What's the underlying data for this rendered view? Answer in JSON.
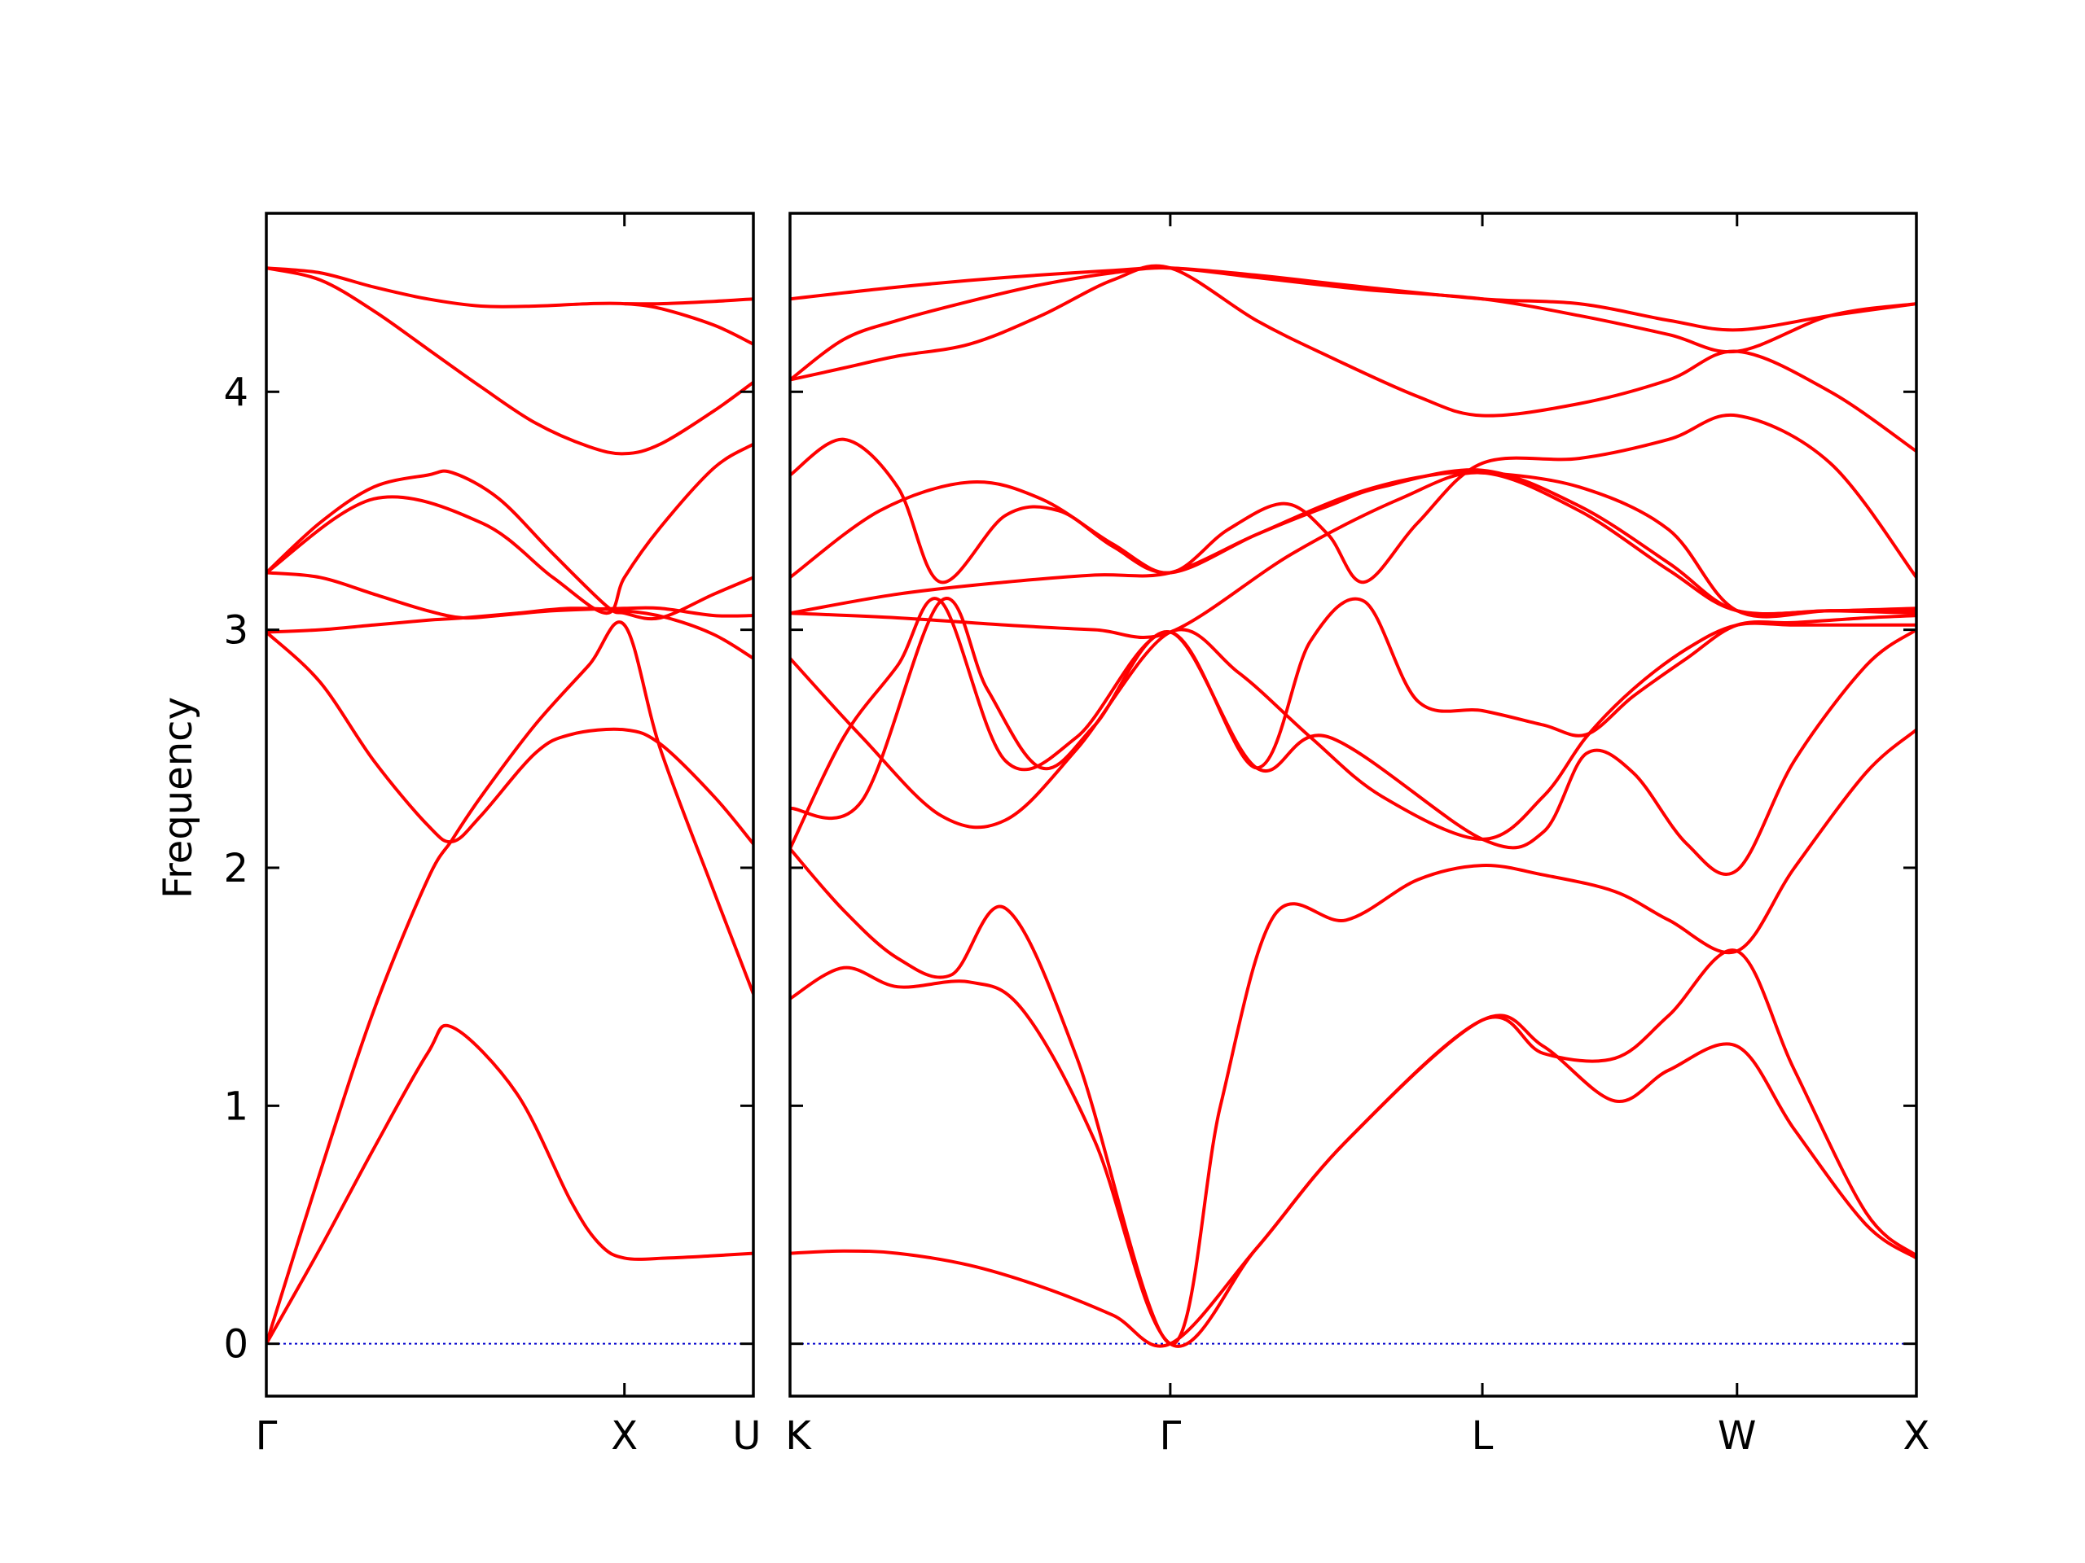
{
  "chart_data": {
    "type": "line",
    "title": "",
    "ylabel": "Frequency",
    "ylim": [
      -0.22,
      4.75
    ],
    "yticks": [
      0,
      1,
      2,
      3,
      4
    ],
    "line_color": "#ff0000",
    "zero_line_color": "#0000cc",
    "grid": false,
    "legend": "none",
    "panels": [
      {
        "name": "Γ-X-U",
        "x_labels": [
          "Γ",
          "X",
          "U"
        ],
        "x_positions": [
          0,
          1,
          1.36
        ],
        "bands": [
          {
            "x": [
              0,
              0.15,
              0.3,
              0.45,
              0.52,
              0.7,
              0.85,
              0.93,
              1.0,
              1.12,
              1.25,
              1.36
            ],
            "y": [
              0,
              0.4,
              0.82,
              1.22,
              1.33,
              1.05,
              0.6,
              0.42,
              0.36,
              0.36,
              0.37,
              0.38
            ]
          },
          {
            "x": [
              0,
              0.15,
              0.3,
              0.45,
              0.52,
              0.6,
              0.75,
              0.9,
              1.0,
              1.1,
              1.25,
              1.36
            ],
            "y": [
              0,
              0.72,
              1.4,
              1.95,
              2.12,
              2.3,
              2.6,
              2.85,
              3.02,
              2.5,
              1.9,
              1.47
            ]
          },
          {
            "x": [
              0,
              0.15,
              0.3,
              0.45,
              0.52,
              0.6,
              0.75,
              0.85,
              1.0,
              1.1,
              1.25,
              1.36
            ],
            "y": [
              2.99,
              2.78,
              2.45,
              2.18,
              2.11,
              2.22,
              2.48,
              2.56,
              2.58,
              2.52,
              2.3,
              2.1
            ]
          },
          {
            "x": [
              0,
              0.15,
              0.3,
              0.45,
              0.55,
              0.7,
              0.85,
              1.0,
              1.12,
              1.25,
              1.36
            ],
            "y": [
              2.99,
              3.0,
              3.02,
              3.04,
              3.05,
              3.07,
              3.09,
              3.08,
              3.05,
              2.98,
              2.88
            ]
          },
          {
            "x": [
              0,
              0.15,
              0.3,
              0.45,
              0.55,
              0.65,
              0.8,
              1.0,
              1.1,
              1.25,
              1.36
            ],
            "y": [
              3.24,
              3.22,
              3.15,
              3.08,
              3.05,
              3.06,
              3.08,
              3.09,
              3.09,
              3.06,
              3.06
            ]
          },
          {
            "x": [
              0,
              0.15,
              0.3,
              0.45,
              0.52,
              0.65,
              0.8,
              0.95,
              1.0,
              1.1,
              1.25,
              1.36
            ],
            "y": [
              3.24,
              3.45,
              3.6,
              3.65,
              3.66,
              3.55,
              3.32,
              3.1,
              3.07,
              3.05,
              3.15,
              3.22
            ]
          },
          {
            "x": [
              0,
              0.3,
              0.6,
              0.8,
              0.95,
              1.0,
              1.1,
              1.25,
              1.36
            ],
            "y": [
              3.24,
              3.55,
              3.45,
              3.22,
              3.07,
              3.22,
              3.43,
              3.68,
              3.78
            ]
          },
          {
            "x": [
              0,
              0.15,
              0.3,
              0.45,
              0.6,
              0.75,
              0.9,
              1.0,
              1.1,
              1.25,
              1.36
            ],
            "y": [
              4.52,
              4.47,
              4.34,
              4.18,
              4.02,
              3.87,
              3.77,
              3.74,
              3.78,
              3.92,
              4.04
            ]
          },
          {
            "x": [
              0,
              0.15,
              0.3,
              0.45,
              0.6,
              0.75,
              0.9,
              1.0,
              1.1,
              1.25,
              1.36
            ],
            "y": [
              4.52,
              4.5,
              4.44,
              4.39,
              4.36,
              4.36,
              4.37,
              4.37,
              4.35,
              4.28,
              4.2
            ]
          },
          {
            "x": [
              1.0,
              1.1,
              1.25,
              1.36
            ],
            "y": [
              4.37,
              4.37,
              4.38,
              4.39
            ]
          }
        ]
      },
      {
        "name": "K-Γ-L-W-X",
        "x_labels": [
          "K",
          "Γ",
          "L",
          "W",
          "X"
        ],
        "x_positions": [
          0,
          1.06,
          1.93,
          2.64,
          3.14
        ],
        "bands": [
          {
            "x": [
              0,
              0.15,
              0.3,
              0.5,
              0.7,
              0.9,
              1.06,
              1.3,
              1.55,
              1.93,
              2.1,
              2.3,
              2.45,
              2.64,
              2.8,
              3.0,
              3.14
            ],
            "y": [
              0.38,
              0.39,
              0.38,
              0.33,
              0.24,
              0.12,
              0,
              0.4,
              0.85,
              1.36,
              1.25,
              1.02,
              1.15,
              1.25,
              0.9,
              0.5,
              0.36
            ]
          },
          {
            "x": [
              0,
              0.15,
              0.3,
              0.5,
              0.65,
              0.85,
              1.06,
              1.3,
              1.55,
              1.93,
              2.1,
              2.3,
              2.45,
              2.64,
              2.8,
              3.0,
              3.14
            ],
            "y": [
              1.45,
              1.58,
              1.5,
              1.52,
              1.4,
              0.85,
              0,
              0.4,
              0.85,
              1.36,
              1.22,
              1.2,
              1.38,
              1.65,
              1.15,
              0.55,
              0.37
            ]
          },
          {
            "x": [
              0,
              0.15,
              0.3,
              0.45,
              0.6,
              0.8,
              1.06,
              1.2,
              1.35,
              1.55,
              1.75,
              1.93,
              2.1,
              2.3,
              2.45,
              2.64,
              2.8,
              3.0,
              3.14
            ],
            "y": [
              2.08,
              1.82,
              1.62,
              1.55,
              1.83,
              1.2,
              0,
              1.0,
              1.8,
              1.78,
              1.95,
              2.01,
              1.97,
              1.9,
              1.78,
              1.65,
              2.0,
              2.4,
              2.58
            ]
          },
          {
            "x": [
              0,
              0.2,
              0.42,
              0.55,
              0.7,
              0.85,
              1.06,
              1.3,
              1.5,
              1.93,
              2.1,
              2.22,
              2.35,
              2.5,
              2.64,
              2.8,
              3.0,
              3.14
            ],
            "y": [
              2.25,
              2.28,
              3.12,
              2.75,
              2.42,
              2.6,
              2.99,
              2.42,
              2.55,
              2.12,
              2.15,
              2.48,
              2.4,
              2.1,
              1.99,
              2.45,
              2.85,
              3.0
            ]
          },
          {
            "x": [
              0,
              0.2,
              0.42,
              0.6,
              0.8,
              1.06,
              1.25,
              1.45,
              1.65,
              1.93,
              2.1,
              2.22,
              2.35,
              2.5,
              2.64,
              2.8,
              3.0,
              3.14
            ],
            "y": [
              2.88,
              2.55,
              2.22,
              2.2,
              2.5,
              2.99,
              2.82,
              2.55,
              2.3,
              2.12,
              2.3,
              2.55,
              2.75,
              2.92,
              3.02,
              3.02,
              3.02,
              3.02
            ]
          },
          {
            "x": [
              0,
              0.15,
              0.3,
              0.42,
              0.6,
              0.8,
              1.06,
              1.3,
              1.45,
              1.6,
              1.75,
              1.93,
              2.1,
              2.22,
              2.35,
              2.5,
              2.64,
              2.8,
              3.0,
              3.14
            ],
            "y": [
              2.08,
              2.55,
              2.85,
              3.12,
              2.45,
              2.55,
              2.99,
              2.42,
              2.95,
              3.12,
              2.7,
              2.66,
              2.6,
              2.56,
              2.72,
              2.88,
              3.02,
              3.03,
              3.05,
              3.06
            ]
          },
          {
            "x": [
              0,
              0.3,
              0.6,
              0.85,
              1.06,
              1.4,
              1.7,
              1.93,
              2.2,
              2.45,
              2.64,
              2.9,
              3.14
            ],
            "y": [
              3.07,
              3.05,
              3.02,
              3.0,
              2.99,
              3.32,
              3.55,
              3.66,
              3.5,
              3.25,
              3.08,
              3.08,
              3.09
            ]
          },
          {
            "x": [
              0,
              0.3,
              0.6,
              0.85,
              1.06,
              1.3,
              1.5,
              1.65,
              1.93,
              2.2,
              2.45,
              2.64,
              2.9,
              3.14
            ],
            "y": [
              3.07,
              3.15,
              3.2,
              3.23,
              3.24,
              3.4,
              3.52,
              3.6,
              3.67,
              3.52,
              3.28,
              3.08,
              3.08,
              3.07
            ]
          },
          {
            "x": [
              0,
              0.25,
              0.5,
              0.7,
              0.9,
              1.06,
              1.22,
              1.38,
              1.5,
              1.6,
              1.75,
              1.93,
              2.2,
              2.45,
              2.64,
              2.9,
              3.14
            ],
            "y": [
              3.22,
              3.5,
              3.62,
              3.55,
              3.36,
              3.24,
              3.42,
              3.53,
              3.4,
              3.2,
              3.45,
              3.7,
              3.72,
              3.8,
              3.9,
              3.7,
              3.22
            ]
          },
          {
            "x": [
              0,
              0.15,
              0.3,
              0.42,
              0.6,
              0.75,
              0.9,
              1.06,
              1.3,
              1.55,
              1.75,
              1.93,
              2.2,
              2.45,
              2.64,
              2.9,
              3.14
            ],
            "y": [
              3.65,
              3.8,
              3.6,
              3.2,
              3.48,
              3.5,
              3.35,
              3.24,
              3.4,
              3.56,
              3.64,
              3.66,
              3.6,
              3.42,
              3.08,
              3.08,
              3.08
            ]
          },
          {
            "x": [
              0,
              0.15,
              0.3,
              0.5,
              0.7,
              0.9,
              1.06,
              1.3,
              1.5,
              1.75,
              1.93,
              2.2,
              2.45,
              2.64,
              2.9,
              3.14
            ],
            "y": [
              4.05,
              4.1,
              4.15,
              4.2,
              4.32,
              4.47,
              4.52,
              4.3,
              4.15,
              3.98,
              3.9,
              3.95,
              4.05,
              4.17,
              4.0,
              3.75
            ]
          },
          {
            "x": [
              0,
              0.15,
              0.3,
              0.5,
              0.7,
              0.9,
              1.06,
              1.3,
              1.6,
              1.93,
              2.2,
              2.45,
              2.64,
              2.9,
              3.14
            ],
            "y": [
              4.05,
              4.22,
              4.3,
              4.38,
              4.45,
              4.5,
              4.52,
              4.48,
              4.43,
              4.39,
              4.32,
              4.24,
              4.17,
              4.32,
              4.37
            ]
          },
          {
            "x": [
              0,
              0.3,
              0.6,
              0.9,
              1.06,
              1.3,
              1.6,
              1.93,
              2.2,
              2.45,
              2.64,
              2.9,
              3.14
            ],
            "y": [
              4.39,
              4.44,
              4.48,
              4.51,
              4.52,
              4.49,
              4.44,
              4.39,
              4.37,
              4.3,
              4.26,
              4.32,
              4.37
            ]
          }
        ]
      }
    ]
  }
}
